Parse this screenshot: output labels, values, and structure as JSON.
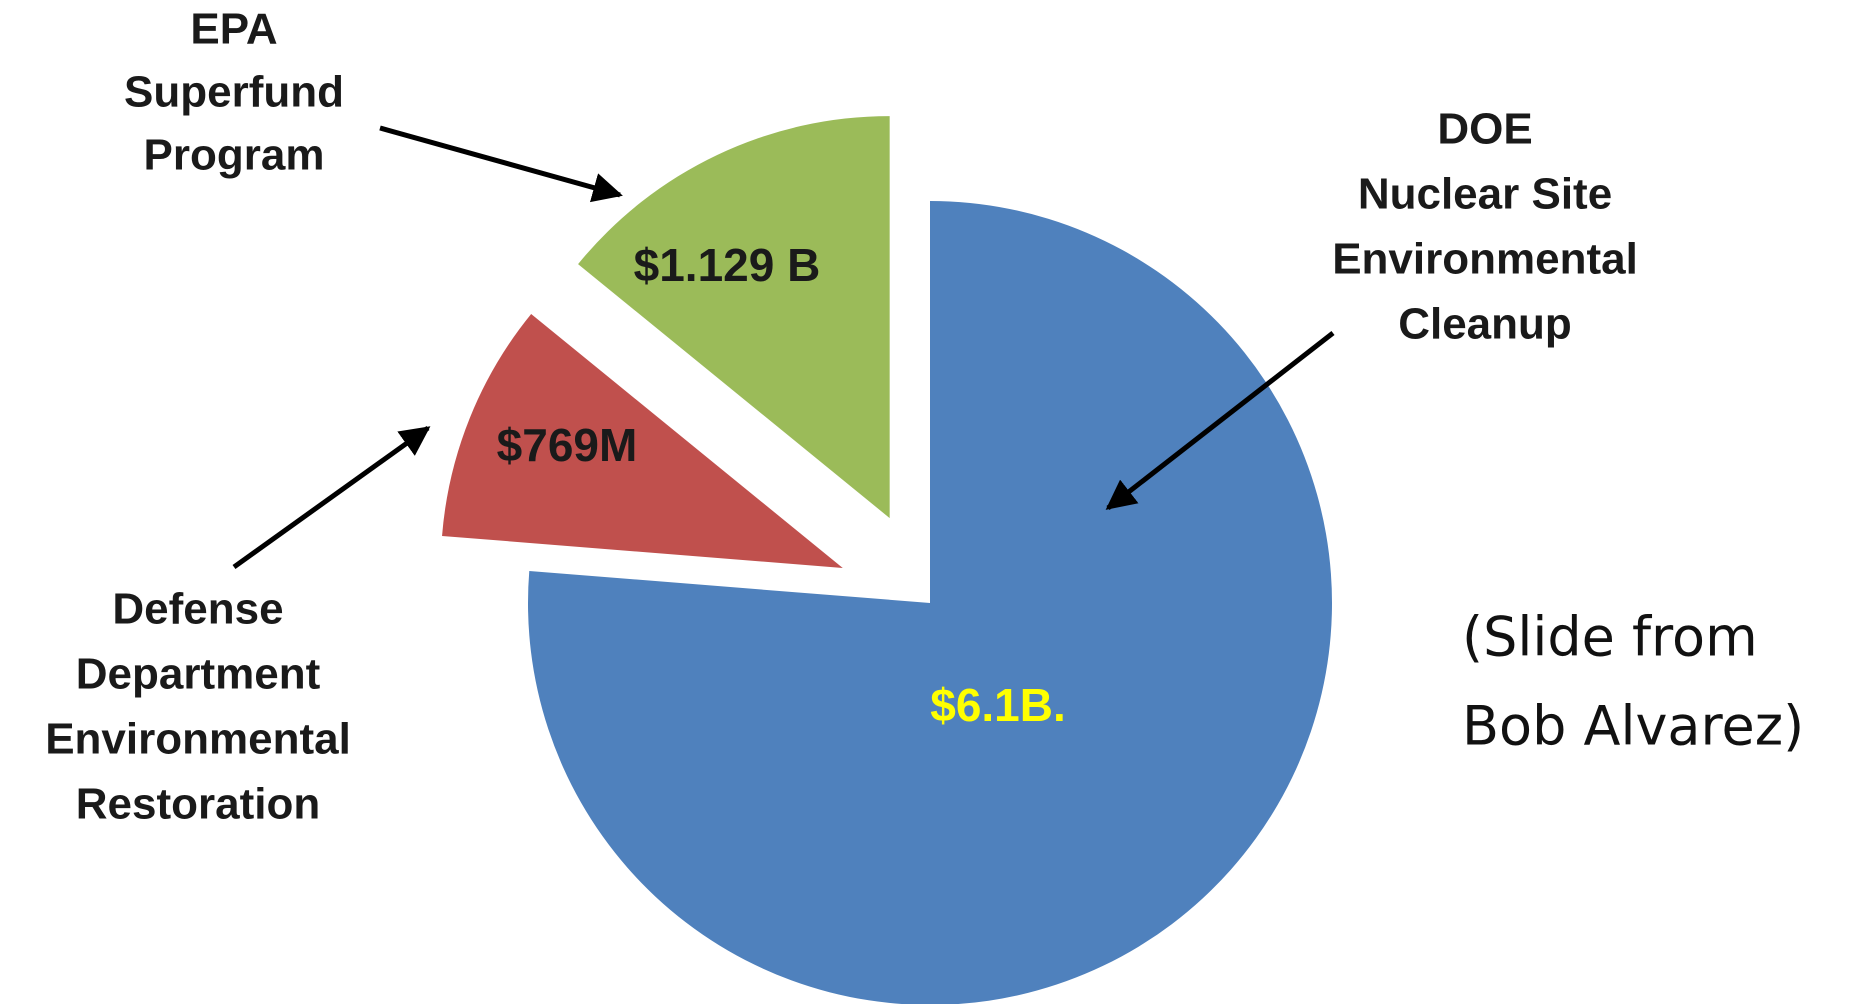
{
  "chart_data": {
    "type": "pie",
    "categories": [
      [
        "DOE",
        "Nuclear Site",
        "Environmental",
        "Cleanup"
      ],
      [
        "Defense",
        "Department",
        "Environmental",
        "Restoration"
      ],
      [
        "EPA",
        "Superfund",
        "Program"
      ]
    ],
    "values": [
      6.1,
      0.769,
      1.129
    ],
    "value_labels": [
      "$6.1B.",
      "$769M",
      "$1.129 B"
    ],
    "colors": [
      "#4f81bd",
      "#c0504d",
      "#9bbb59"
    ],
    "value_label_colors": [
      "#ffff00",
      "#1a1a1a",
      "#1a1a1a"
    ],
    "exploded": [
      false,
      true,
      true
    ],
    "annotation": [
      "(Slide from",
      "Bob Alvarez)"
    ]
  }
}
